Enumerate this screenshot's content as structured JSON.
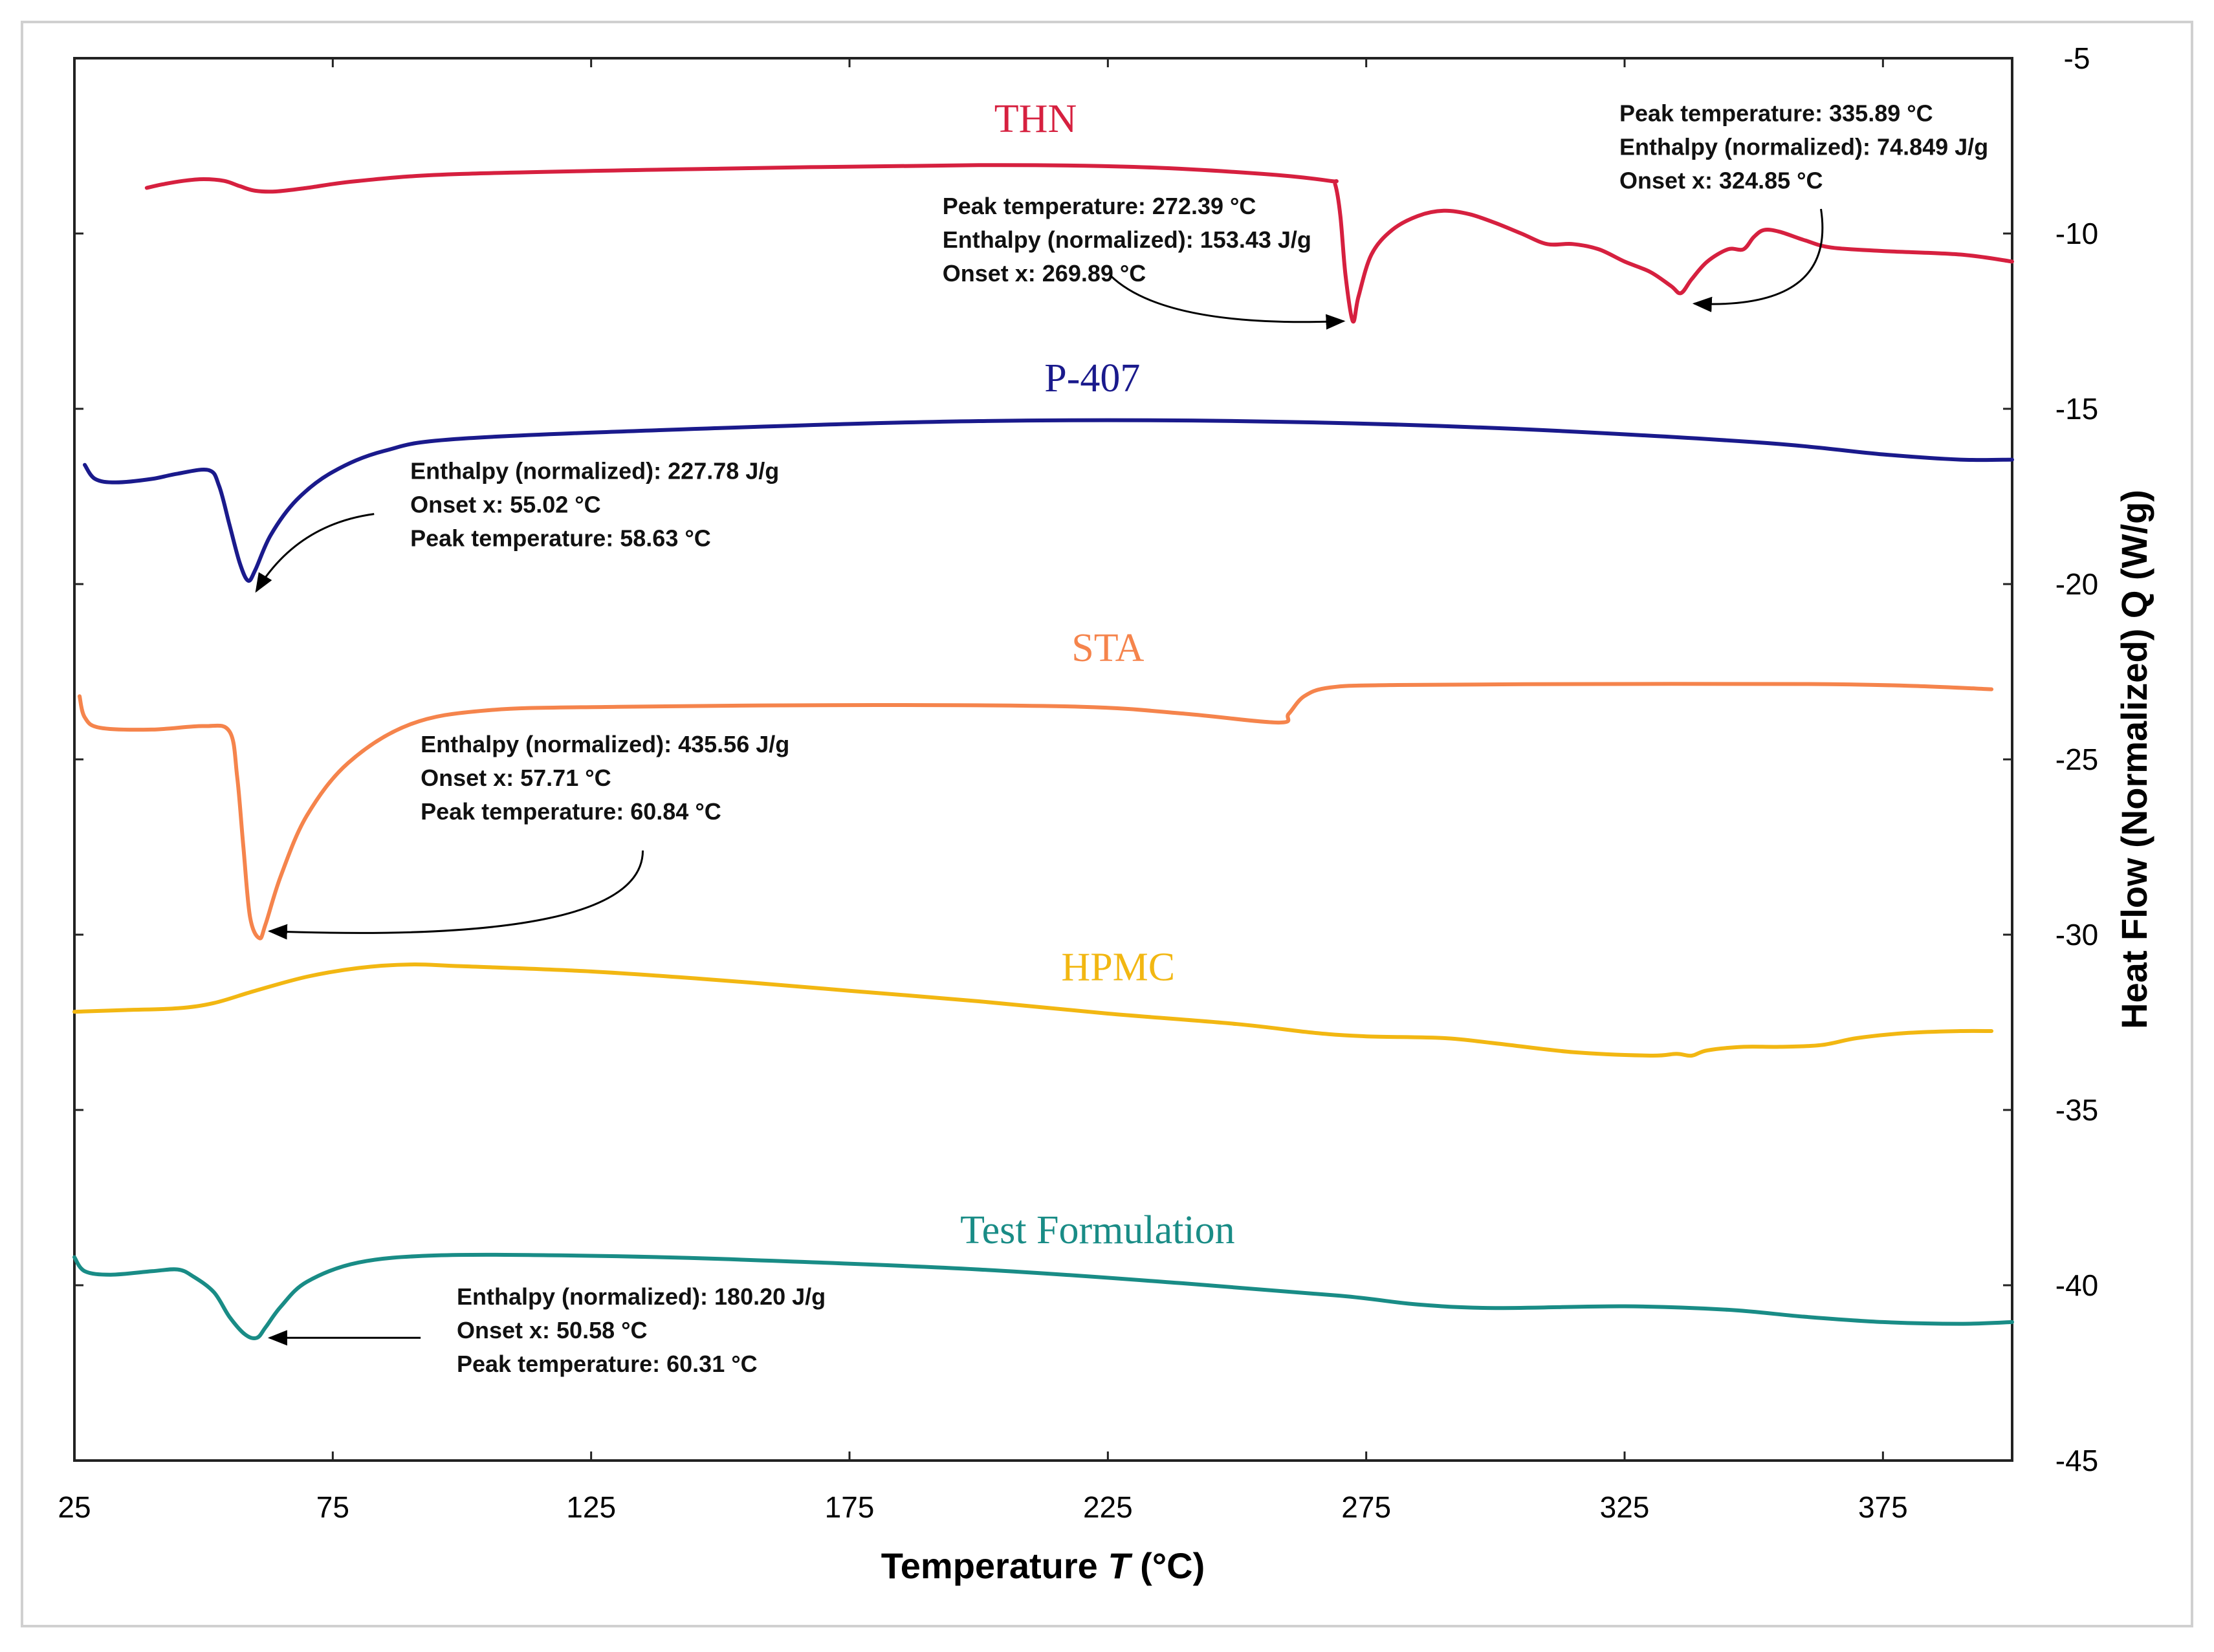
{
  "chart_data": {
    "type": "line",
    "title": "",
    "xlabel_main": "Temperature ",
    "xlabel_var": "T",
    "xlabel_unit": " (°C)",
    "ylabel": "Heat Flow (Normalized) Q (W/g)",
    "xlim": [
      25,
      400
    ],
    "ylim": [
      -45,
      -5
    ],
    "xticks": [
      "25",
      "75",
      "125",
      "175",
      "225",
      "275",
      "325",
      "375"
    ],
    "xtick_values": [
      25,
      75,
      125,
      175,
      225,
      275,
      325,
      375
    ],
    "yticks": [
      "-5",
      "-10",
      "-15",
      "-20",
      "-25",
      "-30",
      "-35",
      "-40",
      "-45"
    ],
    "ytick_values": [
      -5,
      -10,
      -15,
      -20,
      -25,
      -30,
      -35,
      -40,
      -45
    ],
    "grid": false,
    "series": [
      {
        "name": "THN",
        "color": "#d6203f",
        "label_at": [
          211,
          -7.1
        ],
        "points": [
          [
            39,
            -8.7
          ],
          [
            42,
            -8.6
          ],
          [
            46,
            -8.5
          ],
          [
            50,
            -8.45
          ],
          [
            54,
            -8.5
          ],
          [
            57,
            -8.65
          ],
          [
            60,
            -8.78
          ],
          [
            64,
            -8.8
          ],
          [
            70,
            -8.7
          ],
          [
            80,
            -8.5
          ],
          [
            100,
            -8.3
          ],
          [
            150,
            -8.15
          ],
          [
            200,
            -8.05
          ],
          [
            230,
            -8.1
          ],
          [
            255,
            -8.3
          ],
          [
            268,
            -8.5
          ],
          [
            269,
            -8.6
          ],
          [
            270,
            -9.5
          ],
          [
            271,
            -11.2
          ],
          [
            272.4,
            -12.5
          ],
          [
            273.5,
            -11.8
          ],
          [
            276,
            -10.6
          ],
          [
            280,
            -9.9
          ],
          [
            285,
            -9.5
          ],
          [
            290,
            -9.35
          ],
          [
            295,
            -9.45
          ],
          [
            300,
            -9.7
          ],
          [
            305,
            -10.0
          ],
          [
            310,
            -10.3
          ],
          [
            315,
            -10.3
          ],
          [
            320,
            -10.45
          ],
          [
            325,
            -10.8
          ],
          [
            330,
            -11.1
          ],
          [
            334,
            -11.5
          ],
          [
            335.9,
            -11.7
          ],
          [
            338,
            -11.3
          ],
          [
            341,
            -10.8
          ],
          [
            345,
            -10.45
          ],
          [
            348,
            -10.45
          ],
          [
            350,
            -10.1
          ],
          [
            352,
            -9.9
          ],
          [
            355,
            -9.95
          ],
          [
            360,
            -10.2
          ],
          [
            365,
            -10.4
          ],
          [
            375,
            -10.5
          ],
          [
            390,
            -10.6
          ],
          [
            400,
            -10.8
          ]
        ]
      },
      {
        "name": "P-407",
        "color": "#1a1a8c",
        "label_at": [
          222,
          -14.5
        ],
        "points": [
          [
            27,
            -16.6
          ],
          [
            29,
            -17.0
          ],
          [
            33,
            -17.1
          ],
          [
            40,
            -17.0
          ],
          [
            45,
            -16.85
          ],
          [
            51,
            -16.75
          ],
          [
            53,
            -17.2
          ],
          [
            55,
            -18.3
          ],
          [
            57,
            -19.4
          ],
          [
            58.6,
            -19.9
          ],
          [
            60,
            -19.6
          ],
          [
            63,
            -18.6
          ],
          [
            68,
            -17.6
          ],
          [
            75,
            -16.8
          ],
          [
            85,
            -16.2
          ],
          [
            100,
            -15.85
          ],
          [
            150,
            -15.55
          ],
          [
            200,
            -15.35
          ],
          [
            250,
            -15.35
          ],
          [
            300,
            -15.55
          ],
          [
            350,
            -15.95
          ],
          [
            375,
            -16.3
          ],
          [
            390,
            -16.45
          ],
          [
            400,
            -16.45
          ]
        ]
      },
      {
        "name": "STA",
        "color": "#f5844c",
        "label_at": [
          225,
          -22.2
        ],
        "points": [
          [
            26,
            -23.2
          ],
          [
            27,
            -23.8
          ],
          [
            30,
            -24.1
          ],
          [
            40,
            -24.15
          ],
          [
            50,
            -24.05
          ],
          [
            55,
            -24.2
          ],
          [
            56.5,
            -25.5
          ],
          [
            57.7,
            -27.5
          ],
          [
            59,
            -29.5
          ],
          [
            60.8,
            -30.1
          ],
          [
            62,
            -29.7
          ],
          [
            65,
            -28.3
          ],
          [
            70,
            -26.6
          ],
          [
            78,
            -25.1
          ],
          [
            90,
            -24.0
          ],
          [
            105,
            -23.6
          ],
          [
            130,
            -23.5
          ],
          [
            180,
            -23.45
          ],
          [
            220,
            -23.5
          ],
          [
            240,
            -23.7
          ],
          [
            258,
            -23.95
          ],
          [
            260,
            -23.7
          ],
          [
            263,
            -23.2
          ],
          [
            268,
            -22.95
          ],
          [
            280,
            -22.88
          ],
          [
            320,
            -22.85
          ],
          [
            360,
            -22.85
          ],
          [
            380,
            -22.9
          ],
          [
            396,
            -23.0
          ]
        ]
      },
      {
        "name": "HPMC",
        "color": "#f2b712",
        "label_at": [
          227,
          -31.3
        ],
        "points": [
          [
            25,
            -32.2
          ],
          [
            35,
            -32.15
          ],
          [
            45,
            -32.1
          ],
          [
            52,
            -31.95
          ],
          [
            60,
            -31.6
          ],
          [
            70,
            -31.2
          ],
          [
            80,
            -30.95
          ],
          [
            90,
            -30.85
          ],
          [
            100,
            -30.9
          ],
          [
            125,
            -31.05
          ],
          [
            150,
            -31.3
          ],
          [
            175,
            -31.6
          ],
          [
            200,
            -31.9
          ],
          [
            225,
            -32.25
          ],
          [
            250,
            -32.55
          ],
          [
            265,
            -32.8
          ],
          [
            275,
            -32.9
          ],
          [
            290,
            -32.95
          ],
          [
            300,
            -33.1
          ],
          [
            315,
            -33.35
          ],
          [
            330,
            -33.45
          ],
          [
            335,
            -33.4
          ],
          [
            338,
            -33.45
          ],
          [
            341,
            -33.3
          ],
          [
            348,
            -33.2
          ],
          [
            355,
            -33.2
          ],
          [
            363,
            -33.15
          ],
          [
            370,
            -32.95
          ],
          [
            380,
            -32.8
          ],
          [
            390,
            -32.75
          ],
          [
            396,
            -32.75
          ]
        ]
      },
      {
        "name": "Test Formulation",
        "color": "#198c86",
        "label_at": [
          223,
          -38.8
        ],
        "points": [
          [
            25,
            -39.2
          ],
          [
            27,
            -39.6
          ],
          [
            32,
            -39.7
          ],
          [
            40,
            -39.6
          ],
          [
            45,
            -39.55
          ],
          [
            48,
            -39.75
          ],
          [
            52,
            -40.2
          ],
          [
            55,
            -40.9
          ],
          [
            58,
            -41.4
          ],
          [
            60.3,
            -41.5
          ],
          [
            62,
            -41.2
          ],
          [
            65,
            -40.6
          ],
          [
            70,
            -39.9
          ],
          [
            80,
            -39.35
          ],
          [
            95,
            -39.15
          ],
          [
            120,
            -39.15
          ],
          [
            150,
            -39.25
          ],
          [
            200,
            -39.55
          ],
          [
            240,
            -39.95
          ],
          [
            270,
            -40.3
          ],
          [
            285,
            -40.55
          ],
          [
            300,
            -40.65
          ],
          [
            325,
            -40.6
          ],
          [
            345,
            -40.7
          ],
          [
            360,
            -40.9
          ],
          [
            375,
            -41.05
          ],
          [
            390,
            -41.1
          ],
          [
            400,
            -41.05
          ]
        ]
      }
    ],
    "annotations": [
      {
        "lines": [
          "Peak temperature: 272.39 °C",
          "Enthalpy (normalized): 153.43 J/g",
          "Onset x: 269.89 °C"
        ],
        "text_at": [
          193,
          -9.45
        ],
        "target": [
          270.6,
          -12.5
        ],
        "from": [
          225.5,
          -11.2
        ],
        "ctrl": [
          236,
          -12.7
        ]
      },
      {
        "lines": [
          "Peak temperature: 335.89 °C",
          "Enthalpy (normalized): 74.849 J/g",
          "Onset x: 324.85 °C"
        ],
        "text_at": [
          324,
          -6.8
        ],
        "target": [
          338.5,
          -12.0
        ],
        "from": [
          363,
          -9.3
        ],
        "ctrl": [
          366,
          -12.2
        ]
      },
      {
        "lines": [
          "Enthalpy (normalized): 227.78 J/g",
          "Onset x: 55.02 °C",
          "Peak temperature: 58.63 °C"
        ],
        "text_at": [
          90,
          -17.0
        ],
        "target": [
          60.2,
          -20.2
        ],
        "from": [
          83,
          -18.0
        ],
        "ctrl": [
          68,
          -18.3
        ]
      },
      {
        "lines": [
          "Enthalpy (normalized): 435.56 J/g",
          "Onset x: 57.71 °C",
          "Peak temperature: 60.84 °C"
        ],
        "text_at": [
          92,
          -24.8
        ],
        "target": [
          62.8,
          -29.9
        ],
        "from": [
          135,
          -27.6
        ],
        "ctrl": [
          135,
          -30.3
        ]
      },
      {
        "lines": [
          "Enthalpy (normalized): 180.20 J/g",
          "Onset x: 50.58 °C",
          "Peak temperature: 60.31 °C"
        ],
        "text_at": [
          99,
          -40.55
        ],
        "target": [
          62.8,
          -41.5
        ],
        "from": [
          92,
          -41.5
        ],
        "ctrl": [
          77,
          -41.5
        ]
      }
    ]
  }
}
